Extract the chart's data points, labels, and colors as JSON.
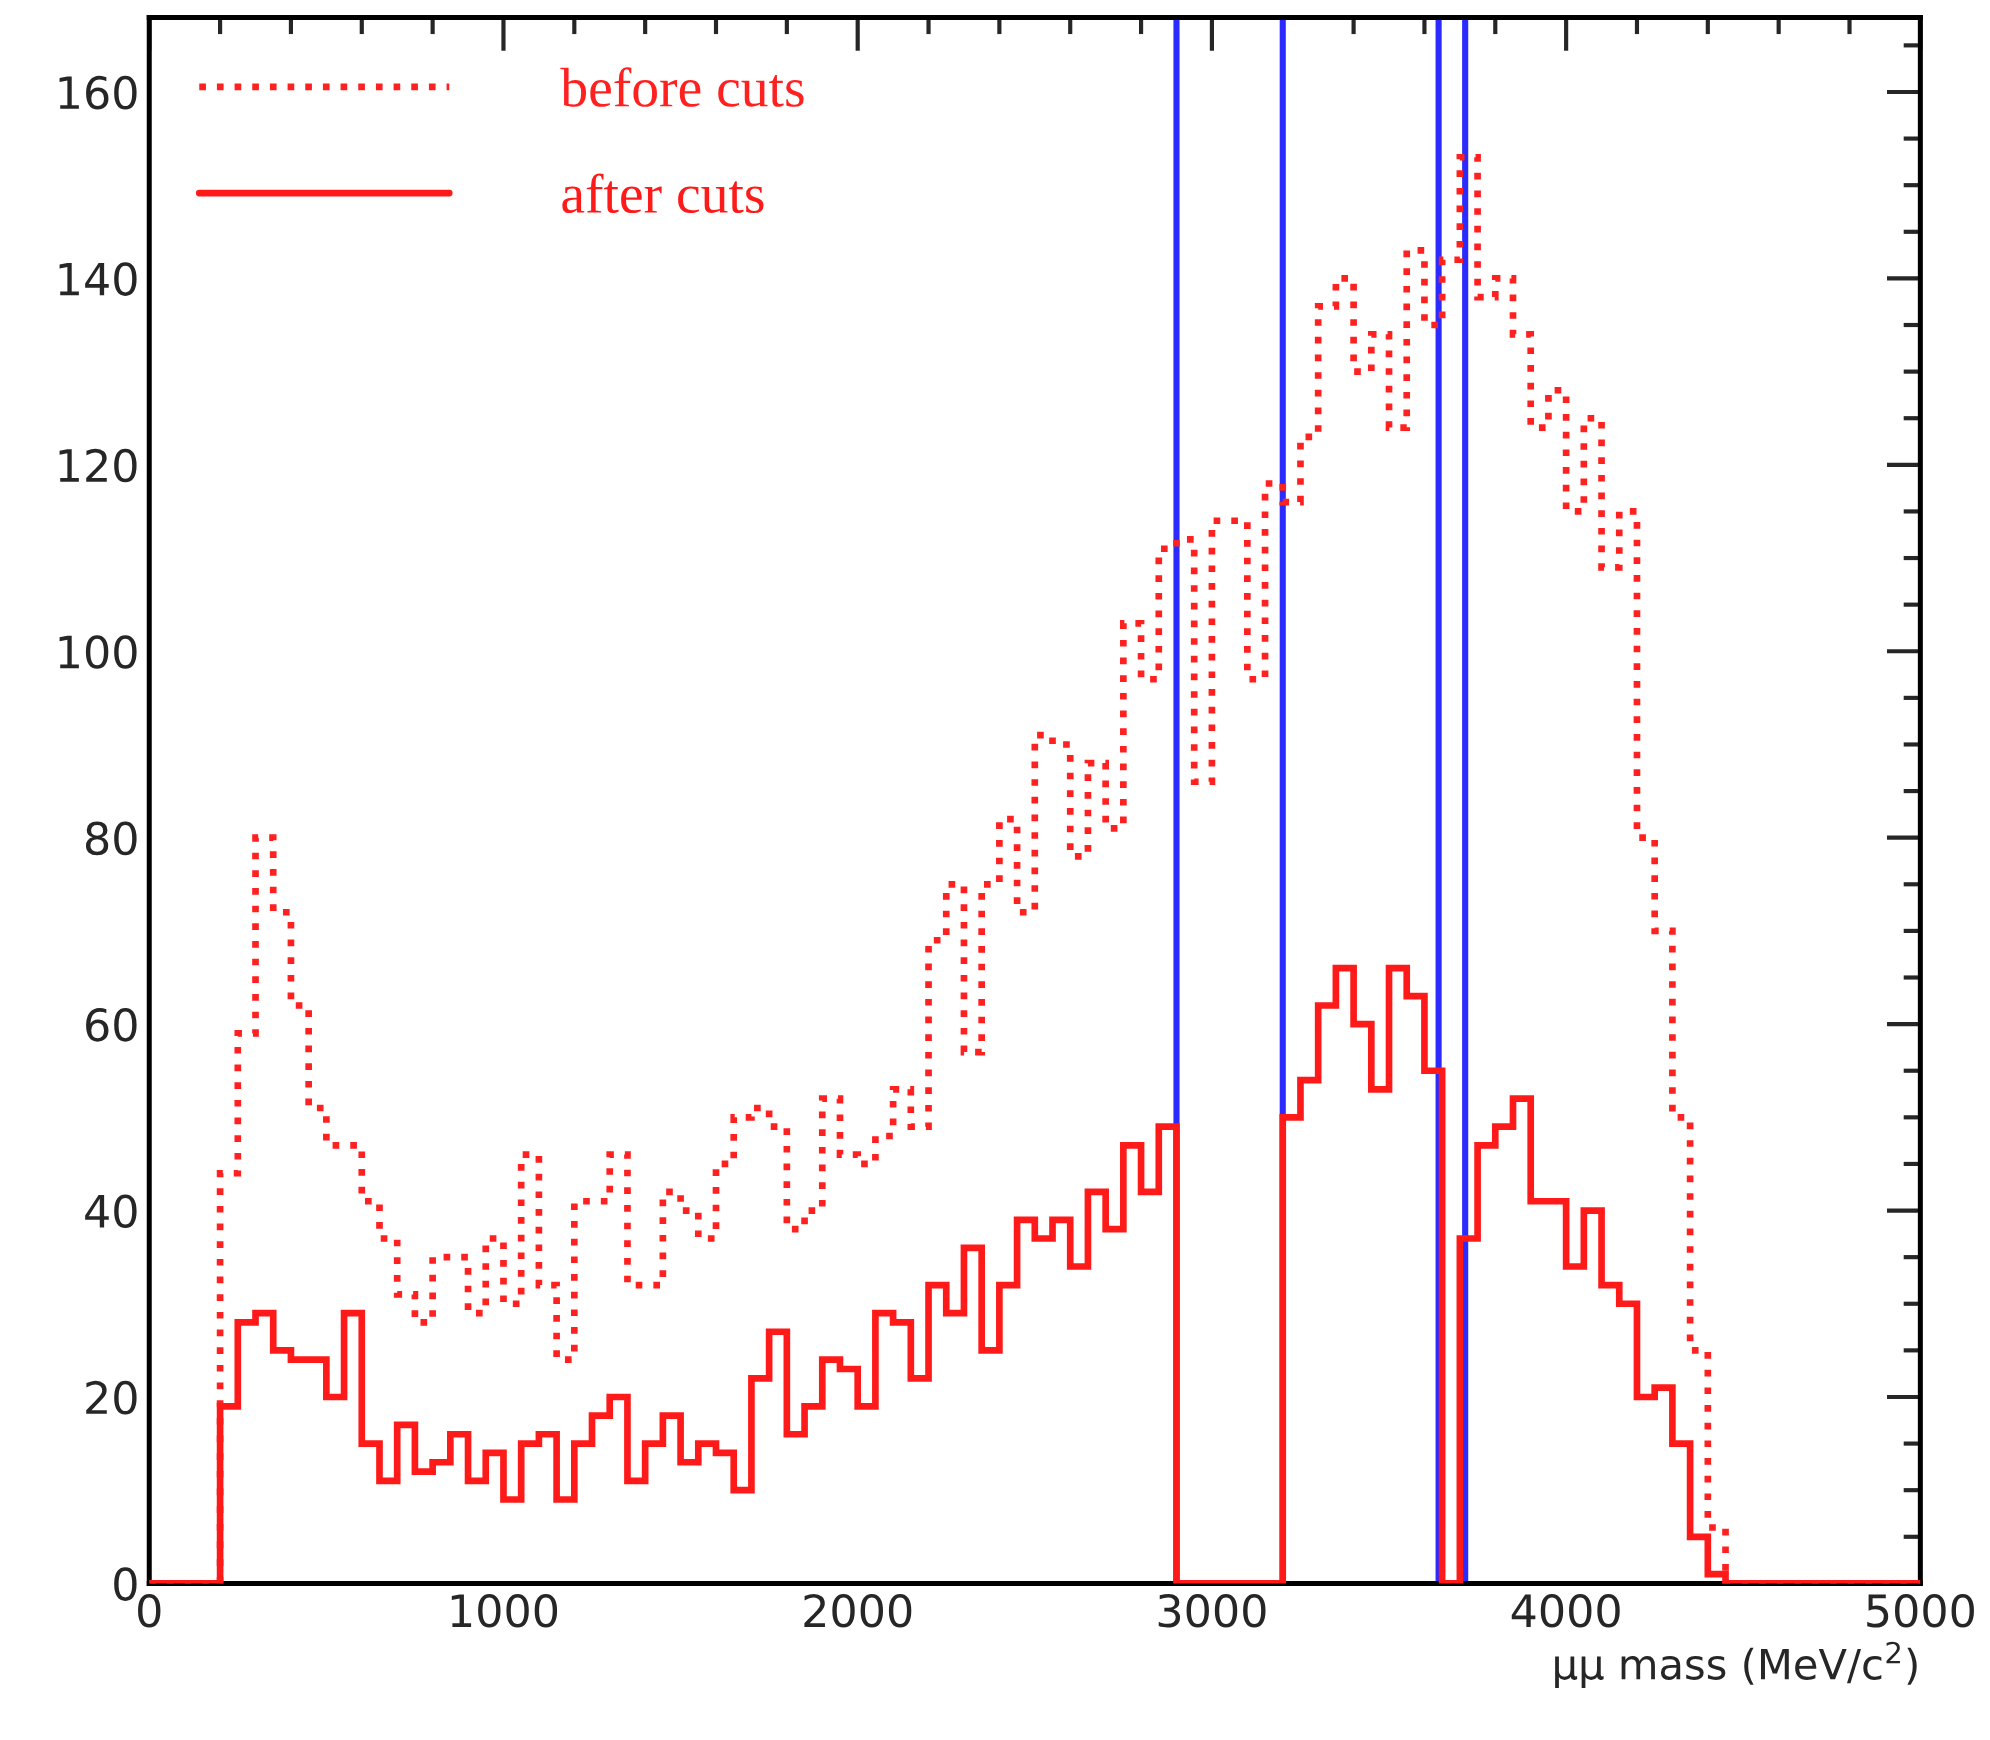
{
  "chart_data": {
    "type": "histogram",
    "xlabel": "μμ mass (MeV/c$^{2}$)",
    "bins": [
      0,
      50,
      100,
      150,
      200,
      250,
      300,
      350,
      400,
      450,
      500,
      550,
      600,
      650,
      700,
      750,
      800,
      850,
      900,
      950,
      1000,
      1050,
      1100,
      1150,
      1200,
      1250,
      1300,
      1350,
      1400,
      1450,
      1500,
      1550,
      1600,
      1650,
      1700,
      1750,
      1800,
      1850,
      1900,
      1950,
      2000,
      2050,
      2100,
      2150,
      2200,
      2250,
      2300,
      2350,
      2400,
      2450,
      2500,
      2550,
      2600,
      2650,
      2700,
      2750,
      2800,
      2850,
      2900,
      2950,
      3000,
      3050,
      3100,
      3150,
      3200,
      3250,
      3300,
      3350,
      3400,
      3450,
      3500,
      3550,
      3600,
      3650,
      3700,
      3750,
      3800,
      3850,
      3900,
      3950,
      4000,
      4050,
      4100,
      4150,
      4200,
      4250,
      4300,
      4350,
      4400,
      4450,
      4500,
      4550,
      4600,
      4650,
      4700,
      4750,
      4800,
      4850,
      4900,
      4950,
      5000
    ],
    "series": [
      {
        "name": "before cuts",
        "color": "#ff2020",
        "line_style": "dotted",
        "values": [
          0,
          0,
          0,
          0,
          44,
          59,
          80,
          72,
          62,
          51,
          47,
          47,
          41,
          37,
          31,
          28,
          35,
          35,
          29,
          37,
          30,
          46,
          32,
          24,
          41,
          41,
          46,
          32,
          32,
          42,
          40,
          37,
          45,
          50,
          51,
          49,
          38,
          40,
          52,
          46,
          45,
          48,
          53,
          49,
          69,
          75,
          57,
          75,
          82,
          72,
          91,
          90,
          78,
          88,
          81,
          103,
          97,
          111,
          112,
          86,
          114,
          114,
          97,
          118,
          116,
          123,
          137,
          140,
          130,
          134,
          124,
          143,
          135,
          142,
          153,
          138,
          140,
          134,
          124,
          128,
          115,
          125,
          109,
          115,
          80,
          70,
          50,
          25,
          6,
          0,
          0,
          0,
          0,
          0,
          0,
          0,
          0,
          0,
          0,
          0
        ]
      },
      {
        "name": "after cuts",
        "color": "#ff1a1a",
        "line_style": "solid",
        "values": [
          0,
          0,
          0,
          0,
          19,
          28,
          29,
          25,
          24,
          24,
          20,
          29,
          15,
          11,
          17,
          12,
          13,
          16,
          11,
          14,
          9,
          15,
          16,
          9,
          15,
          18,
          20,
          11,
          15,
          18,
          13,
          15,
          14,
          10,
          22,
          27,
          16,
          19,
          24,
          23,
          19,
          29,
          28,
          22,
          32,
          29,
          36,
          25,
          32,
          39,
          37,
          39,
          34,
          42,
          38,
          47,
          42,
          49,
          0,
          0,
          0,
          0,
          0,
          0,
          50,
          54,
          62,
          66,
          60,
          53,
          66,
          63,
          55,
          0,
          37,
          47,
          49,
          52,
          41,
          41,
          34,
          40,
          32,
          30,
          20,
          21,
          15,
          5,
          1,
          0,
          0,
          0,
          0,
          0,
          0,
          0,
          0,
          0,
          0,
          0
        ]
      }
    ],
    "ref_lines": [
      {
        "axis": "x",
        "value": 2900,
        "color": "#2b2bff"
      },
      {
        "axis": "x",
        "value": 3200,
        "color": "#2b2bff"
      },
      {
        "axis": "x",
        "value": 3640,
        "color": "#2b2bff"
      },
      {
        "axis": "x",
        "value": 3715,
        "color": "#2b2bff"
      }
    ],
    "xlim": [
      0,
      5000
    ],
    "xticks": [
      0,
      1000,
      2000,
      3000,
      4000,
      5000
    ],
    "ylim": [
      0,
      168
    ],
    "yticks": [
      0,
      20,
      40,
      60,
      80,
      100,
      120,
      140,
      160
    ],
    "legend": "top left",
    "grid": false
  }
}
